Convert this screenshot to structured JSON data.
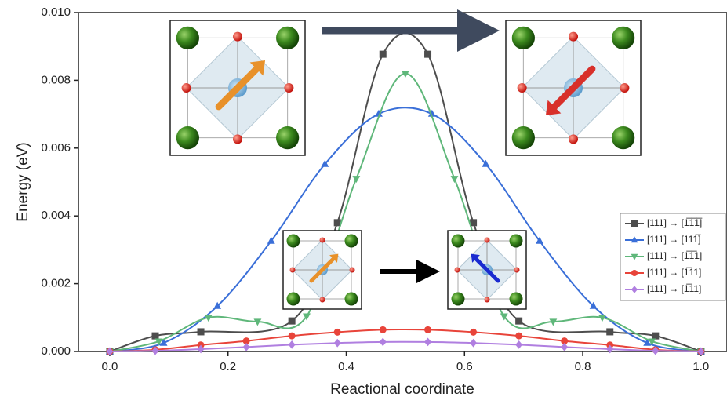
{
  "chart_data": {
    "type": "line",
    "x_label": "Reactional coordinate",
    "y_label": "Energy (eV)",
    "xlim": [
      -0.053,
      1.044
    ],
    "ylim": [
      0,
      0.01
    ],
    "xticks": [
      {
        "value": 0,
        "label": "0.0"
      },
      {
        "value": 0.2,
        "label": "0.2"
      },
      {
        "value": 0.4,
        "label": "0.4"
      },
      {
        "value": 0.6,
        "label": "0.6"
      },
      {
        "value": 0.8,
        "label": "0.8"
      },
      {
        "value": 1,
        "label": "1.0"
      }
    ],
    "yticks": [
      {
        "value": 0,
        "label": "0.000"
      },
      {
        "value": 0.002,
        "label": "0.002"
      },
      {
        "value": 0.004,
        "label": "0.004"
      },
      {
        "value": 0.006,
        "label": "0.006"
      },
      {
        "value": 0.008,
        "label": "0.008"
      },
      {
        "value": 0.01,
        "label": "0.010"
      }
    ],
    "legend_position": "lower right",
    "series": [
      {
        "name": "[111] → [1̅1̅1̅]",
        "color": "#4d4d4d",
        "marker": "square",
        "x": [
          0,
          0.077,
          0.154,
          0.308,
          0.385,
          0.462,
          0.538,
          0.615,
          0.692,
          0.846,
          0.923,
          1.0
        ],
        "values": [
          0,
          0.00046,
          0.00058,
          0.0009,
          0.0038,
          0.00877,
          0.00877,
          0.0038,
          0.0009,
          0.00058,
          0.00046,
          0
        ]
      },
      {
        "name": "[111] → [111̅]",
        "color": "#3a6fd8",
        "marker": "triangle-up",
        "x": [
          0,
          0.091,
          0.182,
          0.273,
          0.364,
          0.455,
          0.545,
          0.636,
          0.727,
          0.818,
          0.909,
          1.0
        ],
        "values": [
          0,
          0.00025,
          0.00134,
          0.00326,
          0.00553,
          0.00701,
          0.00701,
          0.00553,
          0.00326,
          0.00134,
          0.00025,
          0
        ]
      },
      {
        "name": "[111] → [1̅1̅1]",
        "color": "#5fb77a",
        "marker": "triangle-down",
        "x": [
          0,
          0.083,
          0.167,
          0.25,
          0.333,
          0.417,
          0.5,
          0.583,
          0.667,
          0.75,
          0.833,
          0.917,
          1.0
        ],
        "values": [
          0,
          0.0003,
          0.001,
          0.00088,
          0.00104,
          0.0051,
          0.0082,
          0.0051,
          0.00104,
          0.00088,
          0.001,
          0.0003,
          0
        ]
      },
      {
        "name": "[111] → [1̅11]",
        "color": "#e8443a",
        "marker": "circle",
        "x": [
          0,
          0.077,
          0.154,
          0.231,
          0.308,
          0.385,
          0.462,
          0.538,
          0.615,
          0.692,
          0.769,
          0.846,
          0.923,
          1.0
        ],
        "values": [
          0,
          5e-05,
          0.00019,
          0.00031,
          0.00046,
          0.00057,
          0.00064,
          0.00064,
          0.00057,
          0.00046,
          0.00031,
          0.00019,
          5e-05,
          0
        ]
      },
      {
        "name": "[111] → [1̅11]",
        "color": "#b07fe0",
        "marker": "diamond",
        "x": [
          0,
          0.077,
          0.154,
          0.231,
          0.308,
          0.385,
          0.462,
          0.538,
          0.615,
          0.692,
          0.769,
          0.846,
          0.923,
          1.0
        ],
        "values": [
          0,
          2e-05,
          7e-05,
          0.00013,
          0.0002,
          0.00025,
          0.00028,
          0.00028,
          0.00025,
          0.0002,
          0.00013,
          7e-05,
          2e-05,
          0
        ]
      }
    ]
  }
}
